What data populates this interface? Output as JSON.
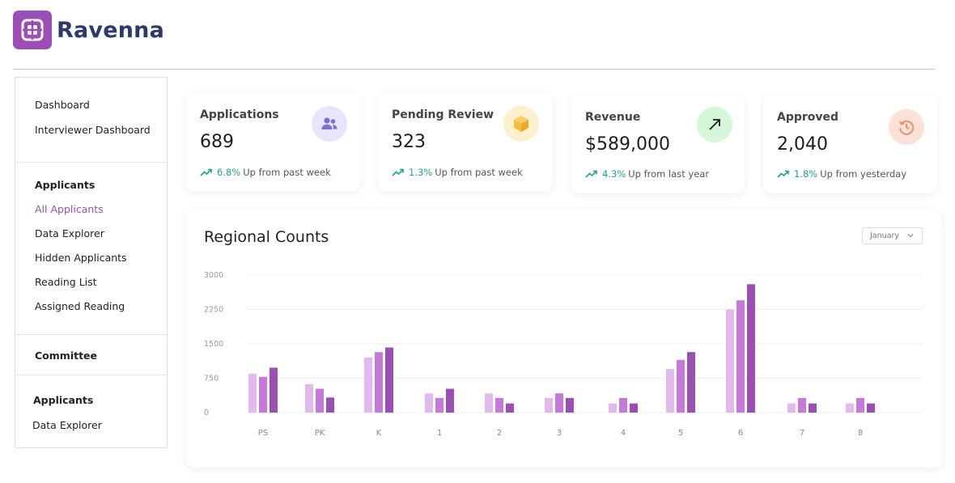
{
  "brand": {
    "name": "Ravenna",
    "mark_color": "#9b4fb5",
    "text_color": "#2b3a6b"
  },
  "sidebar": {
    "top_items": [
      {
        "label": "Dashboard"
      },
      {
        "label": "Interviewer Dashboard"
      }
    ],
    "applicants_section": {
      "heading": "Applicants",
      "items": [
        {
          "label": "All Applicants",
          "active": true
        },
        {
          "label": "Data Explorer"
        },
        {
          "label": "Hidden Applicants"
        },
        {
          "label": "Reading List"
        },
        {
          "label": "Assigned Reading"
        }
      ]
    },
    "committee_section": {
      "heading": "Committee"
    },
    "applicants_section_2": {
      "heading": "Applicants",
      "items": [
        {
          "label": "Data Explorer"
        }
      ]
    }
  },
  "stats": [
    {
      "title": "Applications",
      "value": "689",
      "pct": "6.8%",
      "trend_text": "Up from past week",
      "icon": "users-icon",
      "icon_bg": "#e7e4fb",
      "icon_color": "#7c6fd6"
    },
    {
      "title": "Pending Review",
      "value": "323",
      "pct": "1.3%",
      "trend_text": "Up from past week",
      "icon": "box-icon",
      "icon_bg": "#fdf0cf",
      "icon_color": "#f3bf3f"
    },
    {
      "title": "Revenue",
      "value": "$589,000",
      "pct": "4.3%",
      "trend_text": "Up from last year",
      "icon": "arrow-up-right-icon",
      "icon_bg": "#d5f7d8",
      "icon_color": "#1e1e1e"
    },
    {
      "title": "Approved",
      "value": "2,040",
      "pct": "1.8%",
      "trend_text": "Up from yesterday",
      "icon": "history-icon",
      "icon_bg": "#fde0d6",
      "icon_color": "#f28a6a"
    }
  ],
  "colors": {
    "trend_green": "#1fa38a",
    "bar_light": "#e2b8ee",
    "bar_mid": "#c57ad9",
    "bar_dark": "#9b4fb5"
  },
  "chart_panel": {
    "title": "Regional Counts",
    "select_value": "January"
  },
  "chart_data": {
    "type": "bar",
    "categories": [
      "PS",
      "PK",
      "K",
      "1",
      "2",
      "3",
      "4",
      "5",
      "6",
      "7",
      "8"
    ],
    "series": [
      {
        "values": [
          850,
          620,
          1200,
          420,
          420,
          320,
          200,
          950,
          2250,
          200,
          200
        ]
      },
      {
        "values": [
          780,
          520,
          1320,
          320,
          320,
          420,
          320,
          1150,
          2450,
          320,
          320
        ]
      },
      {
        "values": [
          980,
          330,
          1420,
          520,
          200,
          320,
          200,
          1320,
          2800,
          200,
          200
        ]
      }
    ],
    "yticks": [
      "0",
      "750",
      "1500",
      "2250",
      "3000"
    ],
    "ylim": [
      0,
      3000
    ],
    "grid": true
  }
}
